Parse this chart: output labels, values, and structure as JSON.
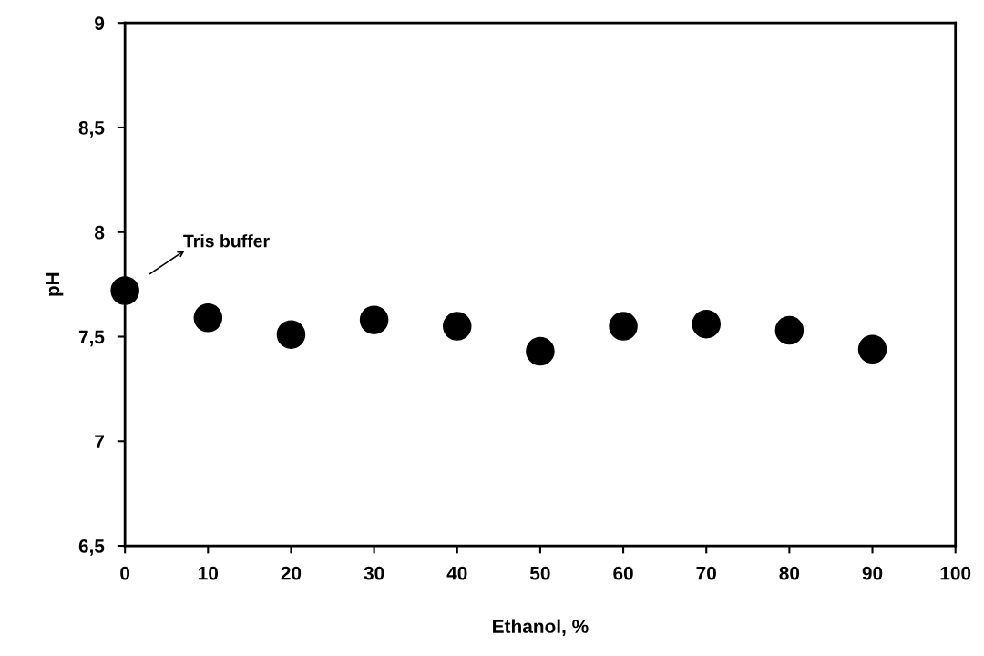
{
  "chart_data": {
    "type": "scatter",
    "xlabel": "Ethanol, %",
    "ylabel": "pH",
    "x": [
      0,
      10,
      20,
      30,
      40,
      50,
      60,
      70,
      80,
      90
    ],
    "series": [
      {
        "color": "#000000",
        "values": [
          7.72,
          7.59,
          7.51,
          7.58,
          7.55,
          7.43,
          7.55,
          7.56,
          7.53,
          7.44
        ]
      }
    ],
    "marker": "circle",
    "xlim": [
      0,
      100
    ],
    "xticks": [
      0,
      10,
      20,
      30,
      40,
      50,
      60,
      70,
      80,
      90,
      100
    ],
    "ylim": [
      6.5,
      9
    ],
    "yticks": [
      {
        "value": 6.5,
        "label": "6,5"
      },
      7,
      {
        "value": 7.5,
        "label": "7,5"
      },
      8,
      {
        "value": 8.5,
        "label": "8,5"
      },
      9
    ],
    "grid": false,
    "legend": false,
    "annotations": [
      "Tris buffer"
    ]
  }
}
